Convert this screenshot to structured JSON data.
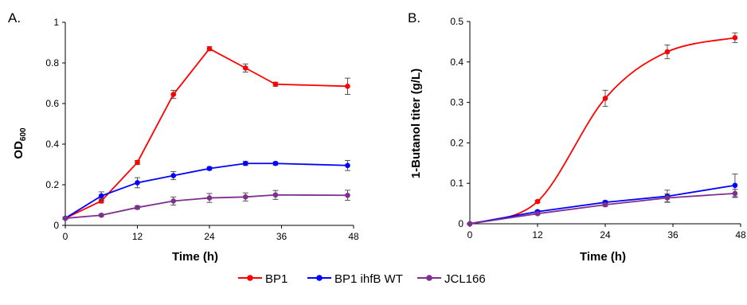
{
  "legend": [
    {
      "name": "BP1",
      "color": "#ff0000"
    },
    {
      "name": "BP1 ihfB WT",
      "color": "#0000ff"
    },
    {
      "name": "JCL166",
      "color": "#7f2f8f"
    }
  ],
  "chart_data": [
    {
      "panel_label": "A.",
      "type": "line",
      "xlabel": "Time (h)",
      "ylabel_main": "OD",
      "ylabel_sub": "600",
      "xlim": [
        0,
        48
      ],
      "ylim": [
        0,
        1
      ],
      "xticks": [
        "0",
        "12",
        "24",
        "36",
        "48"
      ],
      "yticks": [
        "0",
        "0.2",
        "0.4",
        "0.6",
        "0.8",
        "1"
      ],
      "grid": false,
      "legend_position": "bottom-center",
      "series": [
        {
          "name": "BP1",
          "color": "#ff0000",
          "curve": "linear",
          "x": [
            0,
            6,
            12,
            18,
            24,
            30,
            35,
            47
          ],
          "y": [
            0.035,
            0.12,
            0.31,
            0.645,
            0.87,
            0.775,
            0.695,
            0.685
          ],
          "err": [
            0.005,
            0.01,
            0.01,
            0.02,
            0.01,
            0.02,
            0.01,
            0.04
          ]
        },
        {
          "name": "BP1 ihfB WT",
          "color": "#0000ff",
          "curve": "linear",
          "x": [
            0,
            6,
            12,
            18,
            24,
            30,
            35,
            47
          ],
          "y": [
            0.035,
            0.145,
            0.21,
            0.245,
            0.28,
            0.305,
            0.305,
            0.295
          ],
          "err": [
            0.005,
            0.02,
            0.025,
            0.02,
            0.008,
            0.01,
            0.008,
            0.025
          ]
        },
        {
          "name": "JCL166",
          "color": "#7f2f8f",
          "curve": "linear",
          "x": [
            0,
            6,
            12,
            18,
            24,
            30,
            35,
            47
          ],
          "y": [
            0.035,
            0.05,
            0.088,
            0.12,
            0.135,
            0.14,
            0.15,
            0.148
          ],
          "err": [
            0.005,
            0.005,
            0.008,
            0.02,
            0.022,
            0.02,
            0.022,
            0.025
          ]
        }
      ]
    },
    {
      "panel_label": "B.",
      "type": "line",
      "xlabel": "Time (h)",
      "ylabel_main": "1-Butanol titer (g/L)",
      "ylabel_sub": "",
      "xlim": [
        0,
        48
      ],
      "ylim": [
        0,
        0.5
      ],
      "xticks": [
        "0",
        "12",
        "24",
        "36",
        "48"
      ],
      "yticks": [
        "0",
        "0.1",
        "0.2",
        "0.3",
        "0.4",
        "0.5"
      ],
      "grid": false,
      "series": [
        {
          "name": "BP1",
          "color": "#ff0000",
          "curve": "smooth",
          "x": [
            0,
            12,
            24,
            35,
            47
          ],
          "y": [
            0,
            0.055,
            0.31,
            0.425,
            0.46
          ],
          "err": [
            0,
            0.003,
            0.02,
            0.017,
            0.012
          ]
        },
        {
          "name": "BP1 ihfB WT",
          "color": "#0000ff",
          "curve": "linear",
          "x": [
            0,
            12,
            24,
            35,
            47
          ],
          "y": [
            0,
            0.03,
            0.053,
            0.068,
            0.095
          ],
          "err": [
            0,
            0.003,
            0.004,
            0.015,
            0.028
          ]
        },
        {
          "name": "JCL166",
          "color": "#7f2f8f",
          "curve": "linear",
          "x": [
            0,
            12,
            24,
            35,
            47
          ],
          "y": [
            0,
            0.025,
            0.047,
            0.064,
            0.075
          ],
          "err": [
            0,
            0.003,
            0.004,
            0.01,
            0.01
          ]
        }
      ]
    }
  ]
}
